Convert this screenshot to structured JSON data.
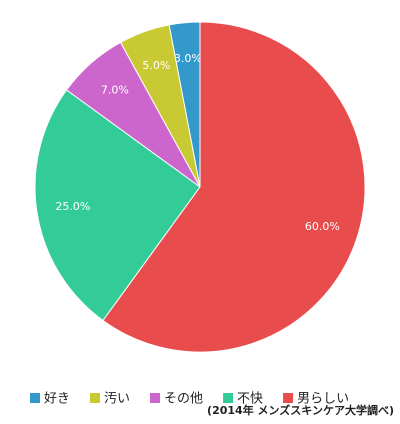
{
  "chart_data": {
    "type": "pie",
    "categories": [
      "好き",
      "汚い",
      "その他",
      "不快",
      "男らしい"
    ],
    "values": [
      3.0,
      5.0,
      7.0,
      25.0,
      60.0
    ],
    "value_labels": [
      "3.0%",
      "5.0%",
      "7.0%",
      "25.0%",
      "60.0%"
    ],
    "colors": [
      "#3399cc",
      "#c9c934",
      "#cc66cc",
      "#33cc99",
      "#e84c4c"
    ],
    "note": "(2014年 メンズスキンケア大学調べ)"
  }
}
